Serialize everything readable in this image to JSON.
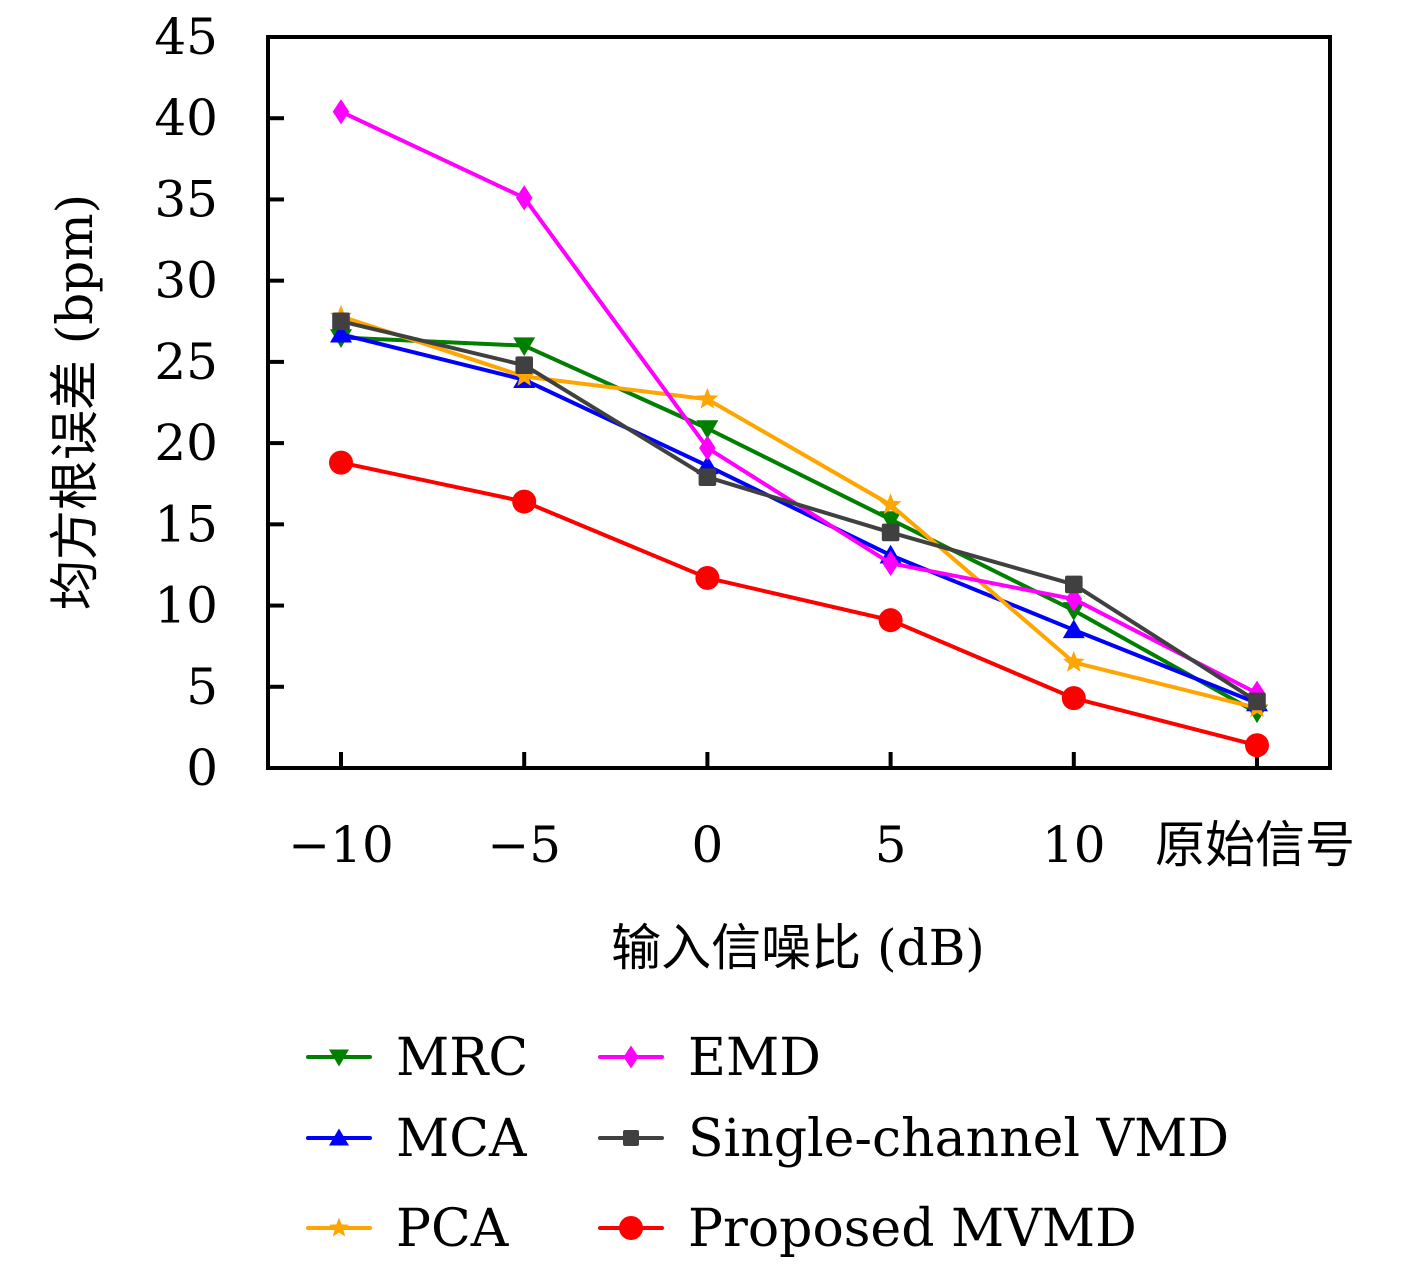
{
  "chart_data": {
    "type": "line",
    "title": "",
    "xlabel": "输入信噪比 (dB)",
    "ylabel": "均方根误差 (bpm)",
    "categories": [
      "−10",
      "−5",
      "0",
      "5",
      "10",
      "原始信号"
    ],
    "ylim": [
      0,
      45
    ],
    "yticks": [
      0,
      5,
      10,
      15,
      20,
      25,
      30,
      35,
      40,
      45
    ],
    "grid": false,
    "legend_position": "bottom",
    "series": [
      {
        "name": "MRC",
        "color": "#007f00",
        "marker": "triangle-down",
        "values": [
          26.5,
          26.0,
          20.9,
          15.3,
          9.7,
          3.4
        ]
      },
      {
        "name": "MCA",
        "color": "#0000ff",
        "marker": "triangle-up",
        "values": [
          26.7,
          23.9,
          18.6,
          13.1,
          8.5,
          4.0
        ]
      },
      {
        "name": "PCA",
        "color": "#ffa500",
        "marker": "star",
        "values": [
          27.8,
          24.1,
          22.7,
          16.2,
          6.5,
          3.7
        ]
      },
      {
        "name": "EMD",
        "color": "#ff00ff",
        "marker": "diamond",
        "values": [
          40.4,
          35.1,
          19.7,
          12.6,
          10.4,
          4.6
        ]
      },
      {
        "name": "Single-channel VMD",
        "color": "#404040",
        "marker": "square",
        "values": [
          27.5,
          24.8,
          17.9,
          14.5,
          11.3,
          4.1
        ]
      },
      {
        "name": "Proposed MVMD",
        "color": "#ff0000",
        "marker": "circle",
        "values": [
          18.8,
          16.4,
          11.7,
          9.1,
          4.3,
          1.4
        ]
      }
    ],
    "legend_order": [
      0,
      3,
      1,
      4,
      2,
      5
    ]
  }
}
